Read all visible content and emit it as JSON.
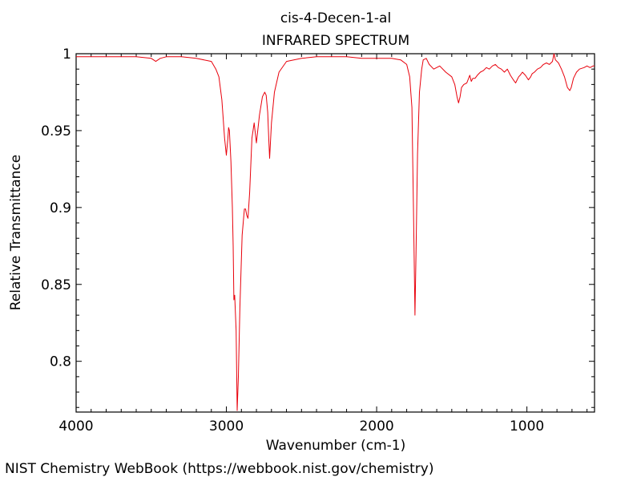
{
  "chart_data": {
    "type": "line",
    "title": "cis-4-Decen-1-al",
    "subtitle": "INFRARED SPECTRUM",
    "xlabel": "Wavenumber (cm-1)",
    "ylabel": "Relative Transmittance",
    "xlim": [
      4000,
      550
    ],
    "ylim": [
      0.767,
      1.0
    ],
    "x_ticks": [
      4000,
      3000,
      2000,
      1000
    ],
    "x_tick_labels": [
      "4000",
      "3000",
      "2000",
      "1000"
    ],
    "y_ticks": [
      1.0,
      0.95,
      0.9,
      0.85,
      0.8
    ],
    "y_tick_labels": [
      "1",
      "0.95",
      "0.9",
      "0.85",
      "0.8"
    ],
    "grid": false,
    "line_color": "#e8000b",
    "series": [
      {
        "x": [
          4000,
          3800,
          3600,
          3500,
          3470,
          3440,
          3400,
          3300,
          3200,
          3100,
          3070,
          3050,
          3030,
          3012,
          3000,
          2990,
          2985,
          2980,
          2970,
          2960,
          2955,
          2950,
          2945,
          2935,
          2928,
          2920,
          2910,
          2895,
          2880,
          2872,
          2865,
          2856,
          2845,
          2830,
          2815,
          2800,
          2780,
          2760,
          2745,
          2735,
          2725,
          2718,
          2712,
          2700,
          2680,
          2650,
          2600,
          2500,
          2400,
          2300,
          2200,
          2100,
          2000,
          1900,
          1840,
          1800,
          1780,
          1765,
          1755,
          1745,
          1738,
          1728,
          1715,
          1700,
          1690,
          1670,
          1650,
          1620,
          1580,
          1540,
          1500,
          1480,
          1465,
          1455,
          1445,
          1435,
          1420,
          1400,
          1380,
          1370,
          1360,
          1345,
          1330,
          1310,
          1290,
          1270,
          1250,
          1230,
          1210,
          1190,
          1170,
          1150,
          1130,
          1110,
          1090,
          1075,
          1065,
          1055,
          1045,
          1030,
          1010,
          990,
          975,
          965,
          950,
          930,
          910,
          890,
          870,
          850,
          830,
          820,
          810,
          790,
          770,
          750,
          730,
          715,
          705,
          690,
          670,
          650,
          620,
          600,
          580,
          560,
          550
        ],
        "y": [
          0.998,
          0.998,
          0.998,
          0.997,
          0.995,
          0.997,
          0.998,
          0.998,
          0.997,
          0.995,
          0.99,
          0.985,
          0.97,
          0.945,
          0.934,
          0.945,
          0.952,
          0.95,
          0.93,
          0.9,
          0.875,
          0.84,
          0.843,
          0.82,
          0.768,
          0.79,
          0.835,
          0.882,
          0.899,
          0.899,
          0.895,
          0.893,
          0.91,
          0.945,
          0.955,
          0.942,
          0.96,
          0.972,
          0.975,
          0.973,
          0.962,
          0.945,
          0.932,
          0.955,
          0.975,
          0.988,
          0.995,
          0.997,
          0.998,
          0.998,
          0.998,
          0.997,
          0.997,
          0.997,
          0.996,
          0.993,
          0.985,
          0.965,
          0.9,
          0.83,
          0.87,
          0.935,
          0.975,
          0.99,
          0.996,
          0.997,
          0.993,
          0.99,
          0.992,
          0.988,
          0.985,
          0.98,
          0.972,
          0.968,
          0.972,
          0.978,
          0.98,
          0.981,
          0.986,
          0.982,
          0.984,
          0.984,
          0.986,
          0.988,
          0.989,
          0.991,
          0.99,
          0.992,
          0.993,
          0.991,
          0.99,
          0.988,
          0.99,
          0.986,
          0.983,
          0.981,
          0.983,
          0.985,
          0.986,
          0.988,
          0.986,
          0.983,
          0.985,
          0.987,
          0.988,
          0.99,
          0.991,
          0.993,
          0.994,
          0.993,
          0.995,
          1.0,
          0.996,
          0.994,
          0.99,
          0.985,
          0.978,
          0.976,
          0.978,
          0.984,
          0.988,
          0.99,
          0.991,
          0.992,
          0.991,
          0.992,
          0.992
        ]
      }
    ]
  },
  "footer": {
    "credit": "NIST Chemistry WebBook (https://webbook.nist.gov/chemistry)"
  }
}
